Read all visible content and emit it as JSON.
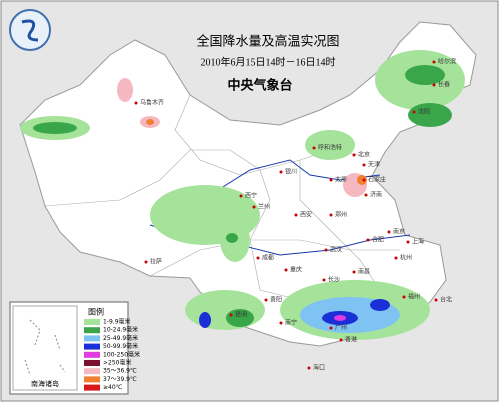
{
  "header": {
    "title": "全国降水量及高温实况图",
    "subtitle": "2010年6月15日14时－16日14时",
    "agency": "中央气象台"
  },
  "legend": {
    "title": "图例",
    "items": [
      {
        "label": "1-9.9毫米",
        "color": "#a6e39a"
      },
      {
        "label": "10-24.9毫米",
        "color": "#3aa64a"
      },
      {
        "label": "25-49.9毫米",
        "color": "#7fc3f2"
      },
      {
        "label": "50-99.9毫米",
        "color": "#1b2fd6"
      },
      {
        "label": "100-250毫米",
        "color": "#e23be2"
      },
      {
        "label": ">250毫米",
        "color": "#7a1030"
      },
      {
        "label": "35～36.9℃",
        "color": "#f5b8c0"
      },
      {
        "label": "37～39.9℃",
        "color": "#f08030"
      },
      {
        "label": "≥40℃",
        "color": "#d81818"
      }
    ]
  },
  "inset": {
    "label": "南海诸岛"
  },
  "cities": [
    "乌鲁木齐",
    "哈尔滨",
    "长春",
    "沈阳",
    "呼和浩特",
    "北京",
    "天津",
    "太原",
    "石家庄",
    "济南",
    "银川",
    "西宁",
    "兰州",
    "西安",
    "郑州",
    "合肥",
    "南京",
    "上海",
    "杭州",
    "武汉",
    "成都",
    "重庆",
    "拉萨",
    "贵阳",
    "长沙",
    "南昌",
    "福州",
    "台北",
    "昆明",
    "南宁",
    "广州",
    "香港",
    "海口"
  ]
}
